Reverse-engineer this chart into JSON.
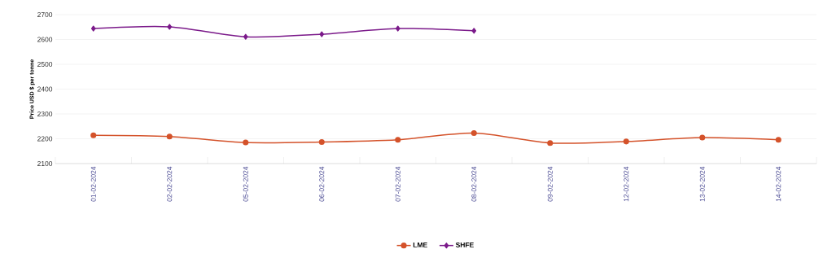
{
  "chart_data": {
    "type": "line",
    "ylabel": "Price USD $ per tonne",
    "categories": [
      "01-02-2024",
      "02-02-2024",
      "05-02-2024",
      "06-02-2024",
      "07-02-2024",
      "08-02-2024",
      "09-02-2024",
      "12-02-2024",
      "13-02-2024",
      "14-02-2024"
    ],
    "series": [
      {
        "name": "LME",
        "color": "#d4522a",
        "marker": "circle",
        "values": [
          2214,
          2209,
          2185,
          2187,
          2196,
          2223,
          2183,
          2189,
          2205,
          2196
        ]
      },
      {
        "name": "SHFE",
        "color": "#7b1a8a",
        "marker": "diamond",
        "values": [
          2644,
          2651,
          2611,
          2621,
          2644,
          2635,
          null,
          null,
          null,
          null
        ]
      }
    ],
    "ylim": [
      2100,
      2700
    ],
    "yticks": [
      2100,
      2200,
      2300,
      2400,
      2500,
      2600,
      2700
    ],
    "grid": "y",
    "legend": "bottom"
  }
}
